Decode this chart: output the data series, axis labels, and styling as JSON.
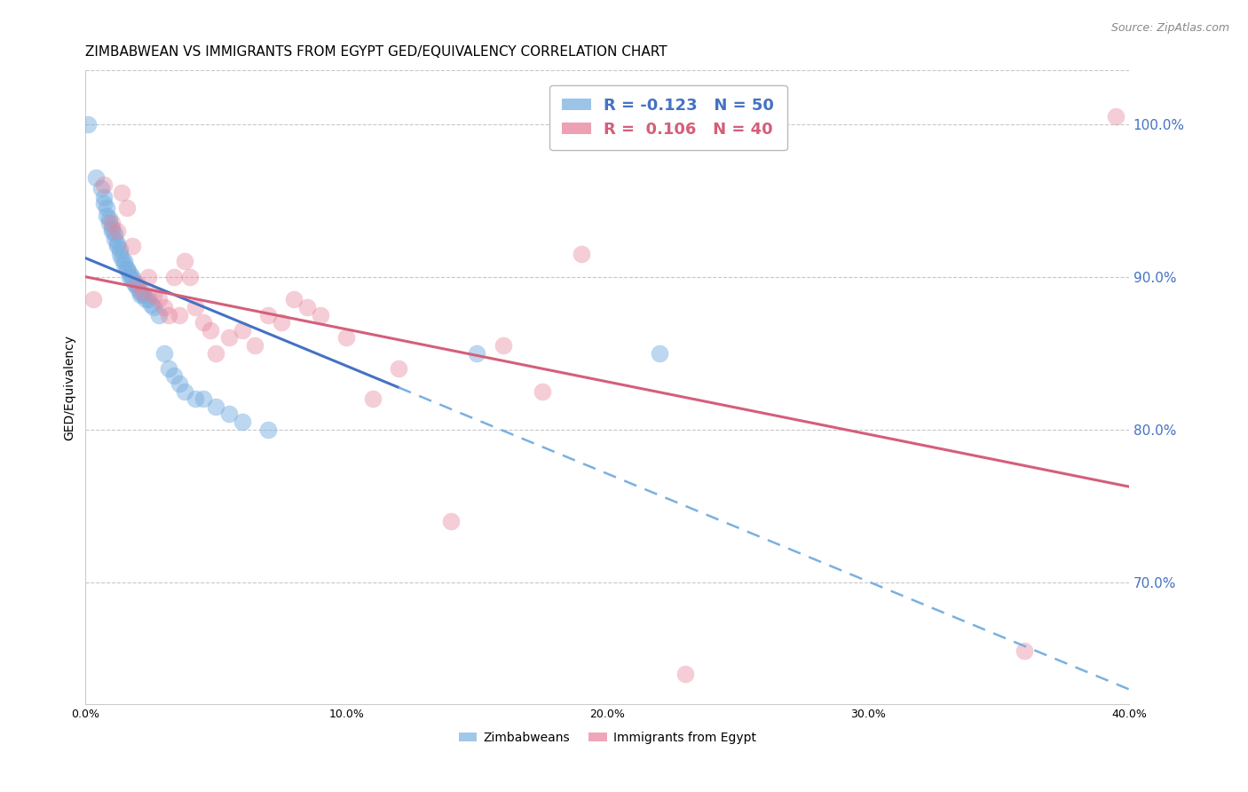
{
  "title": "ZIMBABWEAN VS IMMIGRANTS FROM EGYPT GED/EQUIVALENCY CORRELATION CHART",
  "source": "Source: ZipAtlas.com",
  "ylabel": "GED/Equivalency",
  "right_yticks": [
    70.0,
    80.0,
    90.0,
    100.0
  ],
  "xlim": [
    0.0,
    40.0
  ],
  "ylim": [
    62.0,
    103.5
  ],
  "blue_R": "-0.123",
  "blue_N": "50",
  "pink_R": "0.106",
  "pink_N": "40",
  "blue_color": "#7ab0e0",
  "pink_color": "#e8829a",
  "trend_blue_solid_color": "#4472c4",
  "trend_blue_dash_color": "#7ab0e0",
  "trend_pink_color": "#d45f7a",
  "blue_scatter_x": [
    0.1,
    0.4,
    0.6,
    0.7,
    0.7,
    0.8,
    0.8,
    0.9,
    0.9,
    1.0,
    1.0,
    1.1,
    1.1,
    1.2,
    1.2,
    1.3,
    1.3,
    1.4,
    1.5,
    1.5,
    1.6,
    1.6,
    1.7,
    1.7,
    1.8,
    1.8,
    1.9,
    1.9,
    2.0,
    2.1,
    2.1,
    2.2,
    2.3,
    2.4,
    2.5,
    2.6,
    2.8,
    3.0,
    3.2,
    3.4,
    3.6,
    3.8,
    4.2,
    4.5,
    5.0,
    5.5,
    6.0,
    7.0,
    15.0,
    22.0
  ],
  "blue_scatter_y": [
    100.0,
    96.5,
    95.8,
    95.2,
    94.8,
    94.5,
    94.0,
    93.8,
    93.5,
    93.2,
    93.0,
    92.8,
    92.5,
    92.2,
    92.0,
    91.8,
    91.5,
    91.2,
    91.0,
    90.8,
    90.5,
    90.5,
    90.2,
    90.0,
    90.0,
    89.8,
    89.5,
    89.5,
    89.2,
    89.0,
    88.8,
    88.8,
    88.5,
    88.5,
    88.2,
    88.0,
    87.5,
    85.0,
    84.0,
    83.5,
    83.0,
    82.5,
    82.0,
    82.0,
    81.5,
    81.0,
    80.5,
    80.0,
    85.0,
    85.0
  ],
  "pink_scatter_x": [
    0.3,
    0.7,
    1.0,
    1.2,
    1.4,
    1.6,
    1.8,
    2.0,
    2.2,
    2.4,
    2.6,
    2.8,
    3.0,
    3.2,
    3.4,
    3.6,
    3.8,
    4.0,
    4.2,
    4.5,
    4.8,
    5.0,
    5.5,
    6.0,
    6.5,
    7.0,
    7.5,
    8.0,
    8.5,
    9.0,
    10.0,
    11.0,
    12.0,
    14.0,
    16.0,
    17.5,
    19.0,
    23.0,
    36.0,
    39.5
  ],
  "pink_scatter_y": [
    88.5,
    96.0,
    93.5,
    93.0,
    95.5,
    94.5,
    92.0,
    89.5,
    89.0,
    90.0,
    88.8,
    88.5,
    88.0,
    87.5,
    90.0,
    87.5,
    91.0,
    90.0,
    88.0,
    87.0,
    86.5,
    85.0,
    86.0,
    86.5,
    85.5,
    87.5,
    87.0,
    88.5,
    88.0,
    87.5,
    86.0,
    82.0,
    84.0,
    74.0,
    85.5,
    82.5,
    91.5,
    64.0,
    65.5,
    100.5
  ],
  "background_color": "#ffffff",
  "grid_color": "#c8c8c8",
  "right_axis_color": "#4472c4",
  "title_fontsize": 11,
  "source_fontsize": 9,
  "axis_label_fontsize": 10,
  "tick_fontsize": 9,
  "legend_fontsize": 13
}
